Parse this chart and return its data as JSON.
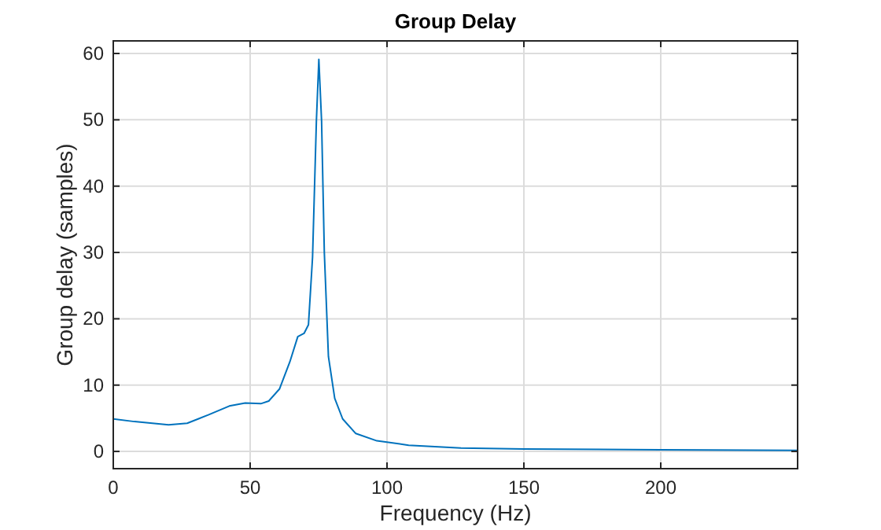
{
  "chart_data": {
    "type": "line",
    "title": "Group Delay",
    "xlabel": "Frequency (Hz)",
    "ylabel": "Group delay (samples)",
    "x": [
      0,
      7.7,
      20.2,
      27,
      34.7,
      42.4,
      48.2,
      53.9,
      56.8,
      60.7,
      64.5,
      67.4,
      69.7,
      71.3,
      72.8,
      74.2,
      75.1,
      76.1,
      77.1,
      78.6,
      80.9,
      83.8,
      88.6,
      96.3,
      107.9,
      127,
      150,
      200,
      250
    ],
    "series": [
      {
        "color": "#0072bd",
        "values": [
          4.9,
          4.5,
          4.0,
          4.25,
          5.5,
          6.85,
          7.3,
          7.2,
          7.6,
          9.4,
          13.5,
          17.3,
          17.8,
          19.1,
          29.3,
          49.8,
          59.1,
          49.8,
          30,
          14.3,
          8,
          4.9,
          2.7,
          1.6,
          0.94,
          0.5,
          0.35,
          0.25,
          0.15
        ]
      }
    ],
    "xlim": [
      0,
      250
    ],
    "xticks": [
      0,
      50,
      100,
      150,
      200
    ],
    "ylim": [
      -2.6,
      61.9
    ],
    "yticks": [
      0,
      10,
      20,
      30,
      40,
      50,
      60
    ],
    "grid": true
  }
}
